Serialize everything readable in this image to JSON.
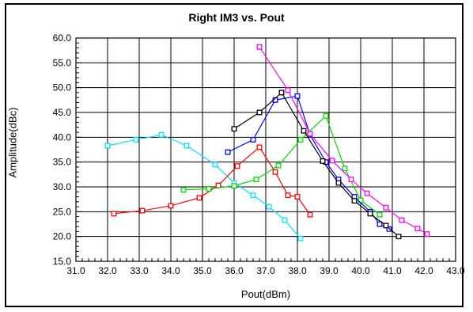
{
  "chart_data": {
    "type": "line",
    "title": "Right IM3 vs. Pout",
    "xlabel": "Pout(dBm)",
    "ylabel": "Amplitude(dBc)",
    "xlim": [
      31.0,
      43.0
    ],
    "ylim": [
      15.0,
      60.0
    ],
    "x_ticks": [
      "31.0",
      "32.0",
      "33.0",
      "34.0",
      "35.0",
      "36.0",
      "37.0",
      "38.0",
      "39.0",
      "40.0",
      "41.0",
      "42.0",
      "43.0"
    ],
    "y_ticks": [
      "15.0",
      "20.0",
      "25.0",
      "30.0",
      "35.0",
      "40.0",
      "45.0",
      "50.0",
      "55.0",
      "60.0"
    ],
    "grid": true,
    "marker": "open-square",
    "series": [
      {
        "color": "#00e5ff",
        "x": [
          32.0,
          32.9,
          33.7,
          34.5,
          35.4,
          36.0,
          36.6,
          37.1,
          37.6,
          38.1
        ],
        "y": [
          38.3,
          39.5,
          40.5,
          38.3,
          34.5,
          30.8,
          28.3,
          26.0,
          23.3,
          19.6
        ]
      },
      {
        "color": "#ff0000",
        "x": [
          32.2,
          33.1,
          34.0,
          34.9,
          35.5,
          36.1,
          36.8,
          37.3,
          37.7,
          38.0,
          38.4
        ],
        "y": [
          24.6,
          25.2,
          26.2,
          27.8,
          30.3,
          34.2,
          38.0,
          33.0,
          28.3,
          28.0,
          24.4
        ]
      },
      {
        "color": "#00dd00",
        "x": [
          34.4,
          35.2,
          36.0,
          36.7,
          37.4,
          38.1,
          38.9,
          39.5,
          40.0,
          40.6
        ],
        "y": [
          29.4,
          29.6,
          30.2,
          31.5,
          34.3,
          39.5,
          44.3,
          33.7,
          27.3,
          24.4
        ]
      },
      {
        "color": "#0000ff",
        "x": [
          35.8,
          36.6,
          37.3,
          38.0,
          38.4,
          38.9,
          39.3,
          39.8,
          40.3,
          40.6,
          40.9
        ],
        "y": [
          37.0,
          39.5,
          47.5,
          48.3,
          40.5,
          35.0,
          31.5,
          28.0,
          25.0,
          22.5,
          21.5
        ]
      },
      {
        "color": "#000000",
        "x": [
          36.0,
          36.8,
          37.5,
          38.2,
          38.8,
          39.3,
          39.8,
          40.3,
          40.8,
          41.2
        ],
        "y": [
          41.7,
          45.0,
          49.0,
          41.3,
          35.2,
          30.8,
          27.2,
          24.6,
          22.2,
          20.0
        ]
      },
      {
        "color": "#ff00ff",
        "x": [
          36.8,
          37.7,
          38.4,
          39.1,
          39.7,
          40.2,
          40.8,
          41.3,
          41.8,
          42.1
        ],
        "y": [
          58.2,
          49.5,
          40.7,
          35.3,
          31.5,
          28.7,
          25.8,
          23.3,
          21.6,
          20.5
        ]
      }
    ]
  }
}
